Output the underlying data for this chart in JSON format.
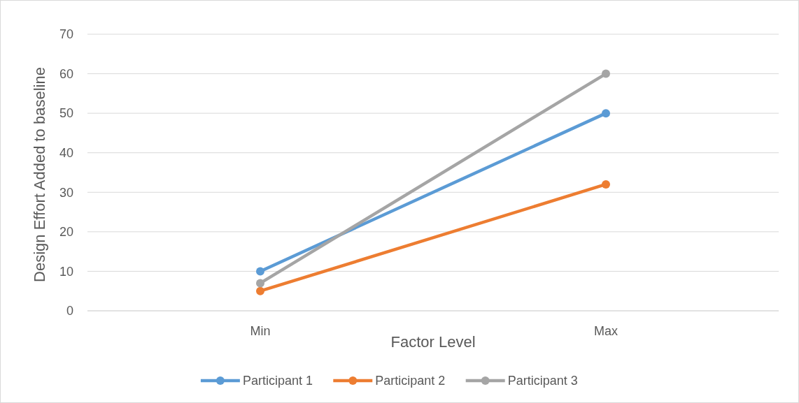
{
  "chart_data": {
    "type": "line",
    "xlabel": "Factor Level",
    "ylabel": "Design Effort Added to baseline",
    "categories": [
      "Min",
      "Max"
    ],
    "series": [
      {
        "name": "Participant 1",
        "color": "#5b9bd5",
        "values": [
          10,
          50
        ]
      },
      {
        "name": "Participant 2",
        "color": "#ed7d31",
        "values": [
          5,
          32
        ]
      },
      {
        "name": "Participant 3",
        "color": "#a5a5a5",
        "values": [
          7,
          60
        ]
      }
    ],
    "ylim": [
      0,
      70
    ],
    "yticks": [
      0,
      10,
      20,
      30,
      40,
      50,
      60,
      70
    ],
    "grid": "y",
    "legend": "bottom",
    "marker": "circle",
    "line_style": "solid"
  }
}
